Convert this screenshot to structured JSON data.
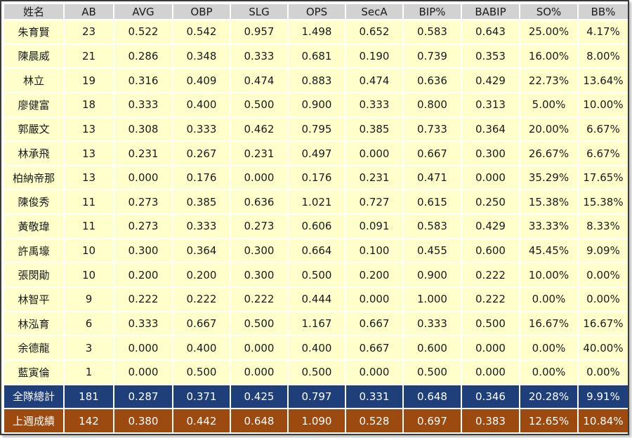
{
  "table": {
    "headers": [
      "姓名",
      "AB",
      "AVG",
      "OBP",
      "SLG",
      "OPS",
      "SecA",
      "BIP%",
      "BABIP",
      "SO%",
      "BB%"
    ],
    "rows": [
      [
        "朱育賢",
        "23",
        "0.522",
        "0.542",
        "0.957",
        "1.498",
        "0.652",
        "0.583",
        "0.643",
        "25.00%",
        "4.17%"
      ],
      [
        "陳晨威",
        "21",
        "0.286",
        "0.348",
        "0.333",
        "0.681",
        "0.190",
        "0.739",
        "0.353",
        "16.00%",
        "8.00%"
      ],
      [
        "林立",
        "19",
        "0.316",
        "0.409",
        "0.474",
        "0.883",
        "0.474",
        "0.636",
        "0.429",
        "22.73%",
        "13.64%"
      ],
      [
        "廖健富",
        "18",
        "0.333",
        "0.400",
        "0.500",
        "0.900",
        "0.333",
        "0.800",
        "0.313",
        "5.00%",
        "10.00%"
      ],
      [
        "郭嚴文",
        "13",
        "0.308",
        "0.333",
        "0.462",
        "0.795",
        "0.385",
        "0.733",
        "0.364",
        "20.00%",
        "6.67%"
      ],
      [
        "林承飛",
        "13",
        "0.231",
        "0.267",
        "0.231",
        "0.497",
        "0.000",
        "0.667",
        "0.300",
        "26.67%",
        "6.67%"
      ],
      [
        "柏納帝那",
        "13",
        "0.000",
        "0.176",
        "0.000",
        "0.176",
        "0.231",
        "0.471",
        "0.000",
        "35.29%",
        "17.65%"
      ],
      [
        "陳俊秀",
        "11",
        "0.273",
        "0.385",
        "0.636",
        "1.021",
        "0.727",
        "0.615",
        "0.250",
        "15.38%",
        "15.38%"
      ],
      [
        "黃敬瑋",
        "11",
        "0.273",
        "0.333",
        "0.273",
        "0.606",
        "0.091",
        "0.583",
        "0.429",
        "33.33%",
        "8.33%"
      ],
      [
        "許禹壕",
        "10",
        "0.300",
        "0.364",
        "0.300",
        "0.664",
        "0.100",
        "0.455",
        "0.600",
        "45.45%",
        "9.09%"
      ],
      [
        "張閔勛",
        "10",
        "0.200",
        "0.200",
        "0.300",
        "0.500",
        "0.200",
        "0.900",
        "0.222",
        "10.00%",
        "0.00%"
      ],
      [
        "林智平",
        "9",
        "0.222",
        "0.222",
        "0.222",
        "0.444",
        "0.000",
        "1.000",
        "0.222",
        "0.00%",
        "0.00%"
      ],
      [
        "林泓育",
        "6",
        "0.333",
        "0.667",
        "0.500",
        "1.167",
        "0.667",
        "0.333",
        "0.500",
        "16.67%",
        "16.67%"
      ],
      [
        "余德龍",
        "3",
        "0.000",
        "0.400",
        "0.000",
        "0.400",
        "0.667",
        "0.600",
        "0.000",
        "0.00%",
        "40.00%"
      ],
      [
        "藍寅倫",
        "1",
        "0.000",
        "0.500",
        "0.000",
        "0.500",
        "0.000",
        "0.500",
        "0.000",
        "0.00%",
        "0.00%"
      ]
    ],
    "team_total": [
      "全隊總計",
      "181",
      "0.287",
      "0.371",
      "0.425",
      "0.797",
      "0.331",
      "0.648",
      "0.346",
      "20.28%",
      "9.91%"
    ],
    "last_week": [
      "上週成績",
      "142",
      "0.380",
      "0.442",
      "0.648",
      "1.090",
      "0.528",
      "0.697",
      "0.383",
      "12.65%",
      "10.84%"
    ]
  },
  "colors": {
    "header_bg": "#d2d2d2",
    "row_bg": "#ffffcc",
    "total_bg": "#1f3f7a",
    "last_week_bg": "#9c4a0f"
  }
}
